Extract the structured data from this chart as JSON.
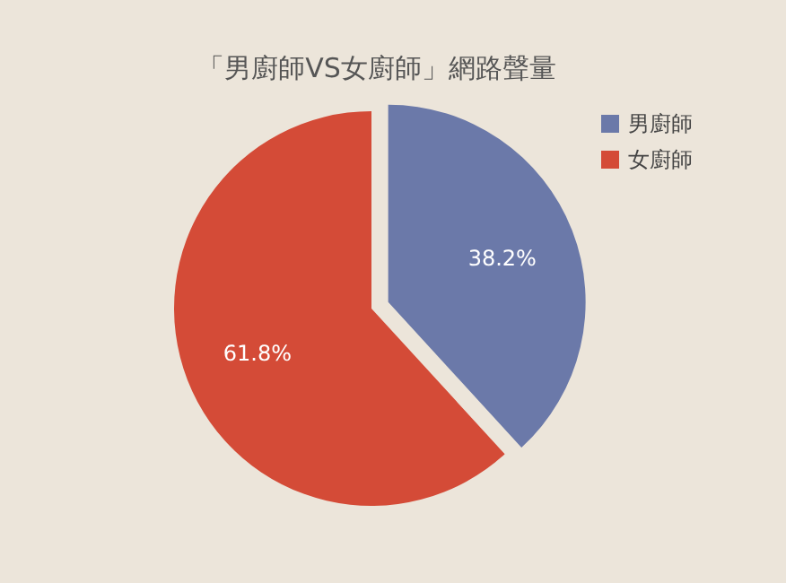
{
  "chart_data": {
    "type": "pie",
    "title": "「男廚師VS女廚師」網路聲量",
    "categories": [
      "男廚師",
      "女廚師"
    ],
    "values": [
      38.2,
      61.8
    ],
    "colors": [
      "#6b79a9",
      "#d44b37"
    ],
    "value_labels": [
      "38.2%",
      "61.8%"
    ],
    "legend": "top right"
  }
}
